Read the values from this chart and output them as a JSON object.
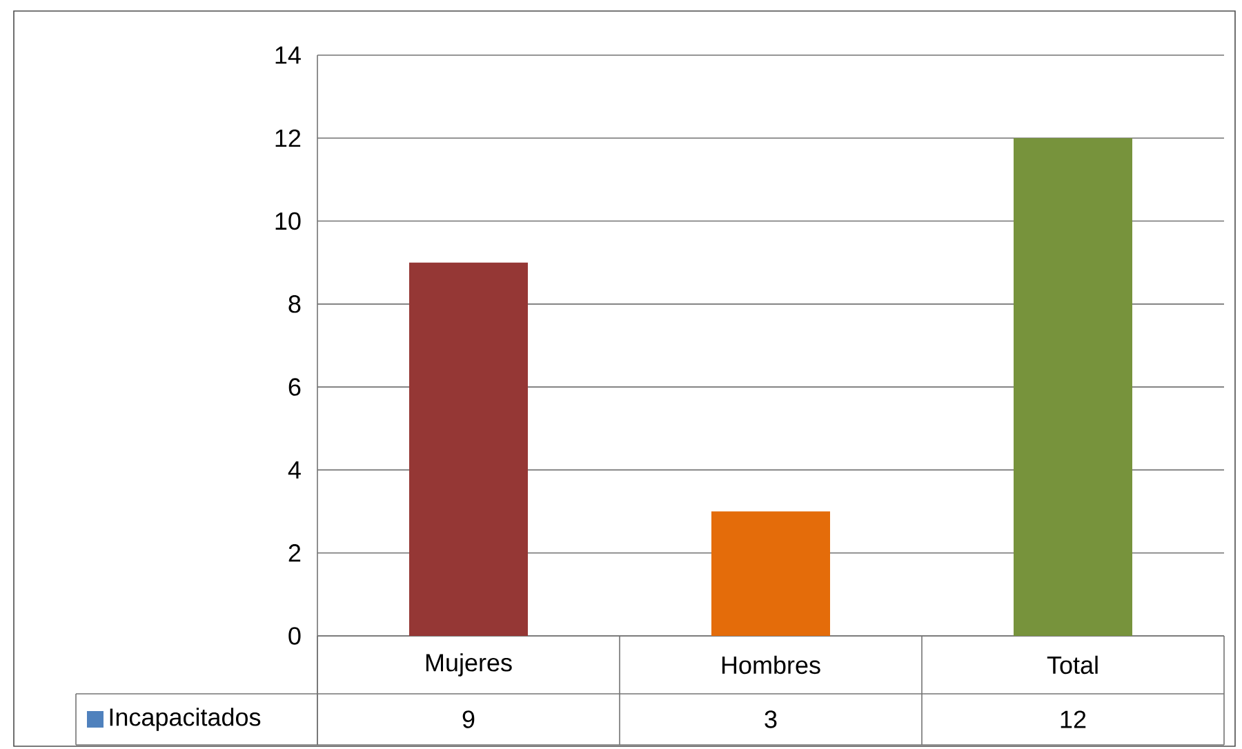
{
  "chart_data": {
    "type": "bar",
    "categories": [
      "Mujeres",
      "Hombres",
      "Total"
    ],
    "series": [
      {
        "name": "Incapacitados",
        "color": "#4f81bd",
        "colors": [
          "#953735",
          "#e46c0a",
          "#77933c"
        ],
        "values": [
          9,
          3,
          12
        ]
      }
    ],
    "ylim": [
      0,
      14
    ],
    "yticks": [
      0,
      2,
      4,
      6,
      8,
      10,
      12,
      14
    ],
    "grid": "y",
    "data_labels": true,
    "legend": "bottom left"
  }
}
